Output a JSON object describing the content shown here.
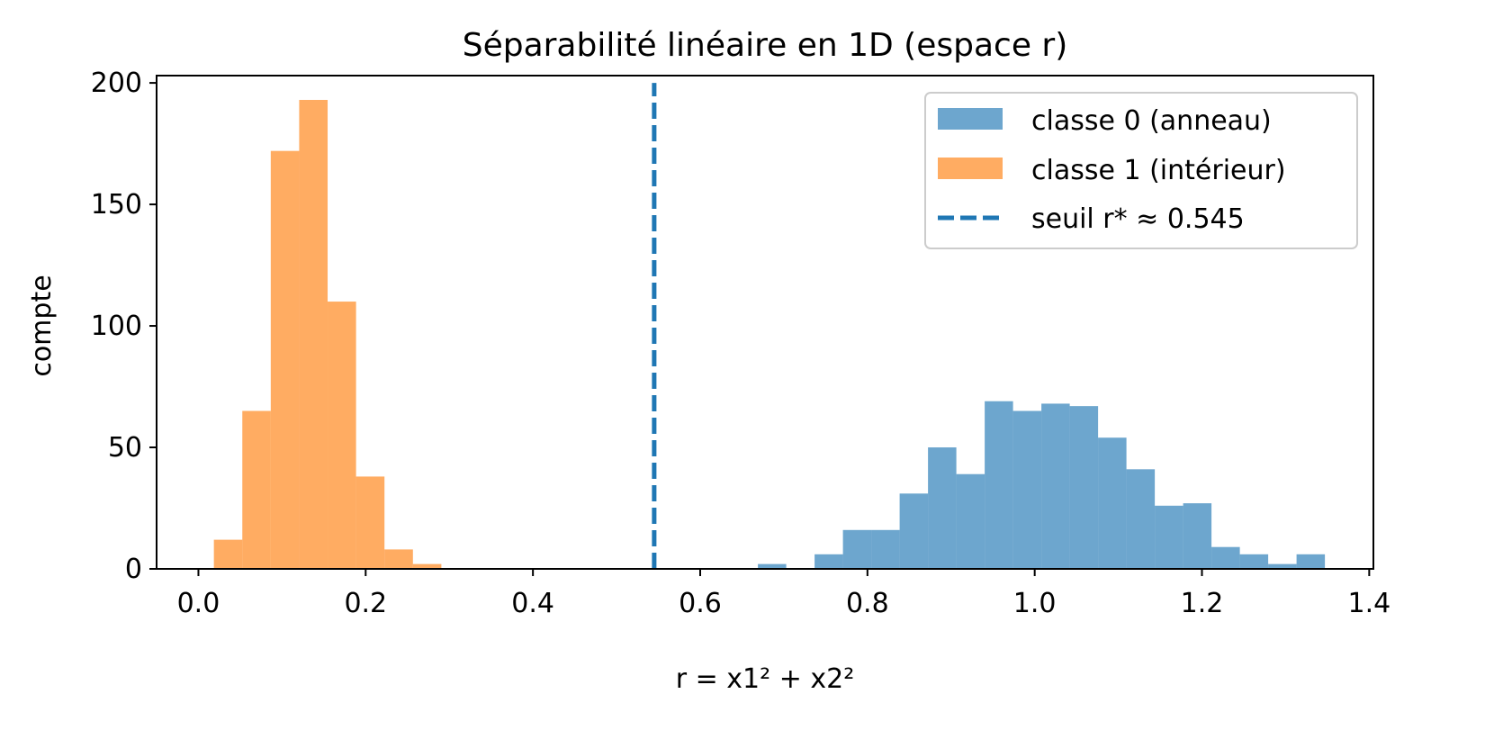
{
  "chart_data": {
    "type": "histogram",
    "title": "Séparabilité linéaire en 1D (espace r)",
    "xlabel": "r = x1² + x2²",
    "ylabel": "compte",
    "xlim": [
      -0.05,
      1.405
    ],
    "ylim": [
      0,
      203
    ],
    "xticks": [
      0.0,
      0.2,
      0.4,
      0.6,
      0.8,
      1.0,
      1.2,
      1.4
    ],
    "xtick_labels": [
      "0.0",
      "0.2",
      "0.4",
      "0.6",
      "0.8",
      "1.0",
      "1.2",
      "1.4"
    ],
    "yticks": [
      0,
      50,
      100,
      150,
      200
    ],
    "ytick_labels": [
      "0",
      "50",
      "100",
      "150",
      "200"
    ],
    "grid": false,
    "legend_position": "top-right",
    "series": [
      {
        "name": "classe 0 (anneau)",
        "color": "#1f77b4",
        "opacity": 0.65,
        "bin_edges": [
          0.669,
          0.7029,
          0.7368,
          0.7707,
          0.8046,
          0.8385,
          0.8724,
          0.9063,
          0.9402,
          0.9741,
          1.008,
          1.0419,
          1.0758,
          1.1097,
          1.1436,
          1.1775,
          1.2114,
          1.2453,
          1.2792,
          1.3131,
          1.347
        ],
        "counts": [
          2,
          0,
          6,
          16,
          16,
          31,
          50,
          39,
          69,
          65,
          68,
          67,
          54,
          41,
          26,
          27,
          9,
          6,
          2,
          6
        ]
      },
      {
        "name": "classe 1 (intérieur)",
        "color": "#ff7f0e",
        "opacity": 0.65,
        "bin_edges": [
          0.0185,
          0.0525,
          0.0865,
          0.1205,
          0.1545,
          0.1885,
          0.2225,
          0.2565,
          0.2905
        ],
        "counts": [
          12,
          65,
          172,
          193,
          110,
          38,
          8,
          2
        ]
      }
    ],
    "threshold": {
      "name": "seuil r* ≈ 0.545",
      "x": 0.545,
      "color": "#1f77b4",
      "style": "dashed"
    }
  }
}
